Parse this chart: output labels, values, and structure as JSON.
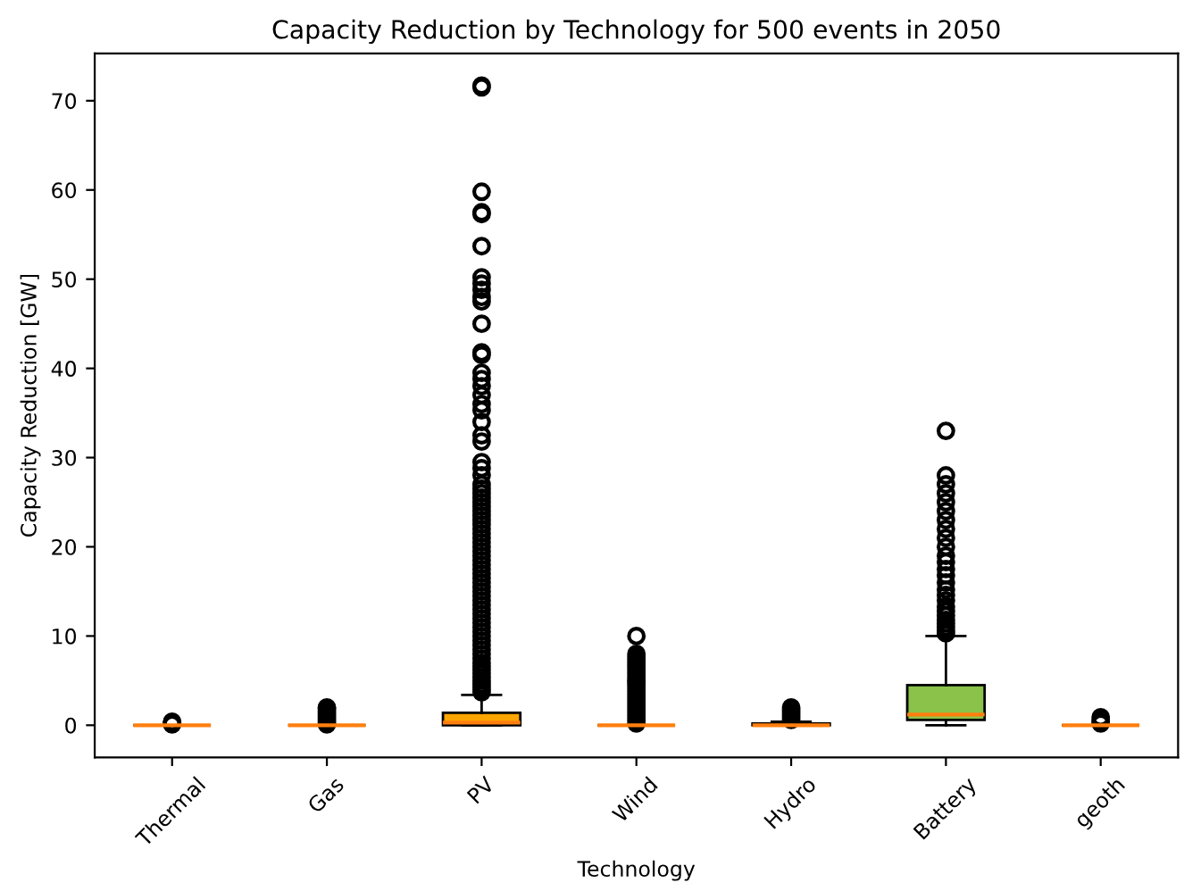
{
  "chart_data": {
    "type": "box",
    "title": "Capacity Reduction by Technology for 500 events in 2050",
    "xlabel": "Technology",
    "ylabel": "Capacity Reduction [GW]",
    "categories": [
      "Thermal",
      "Gas",
      "PV",
      "Wind",
      "Hydro",
      "Battery",
      "geoth"
    ],
    "colors": [
      null,
      null,
      "#ffa500",
      null,
      "#ffa500",
      "#8bc34a",
      null
    ],
    "boxes": [
      {
        "low": 0,
        "q1": 0,
        "median": 0,
        "q3": 0,
        "high": 0,
        "outliers": [
          0.1,
          0.2,
          0.3,
          0.4
        ]
      },
      {
        "low": 0,
        "q1": 0,
        "median": 0,
        "q3": 0,
        "high": 0,
        "outliers": [
          0.1,
          0.3,
          0.5,
          0.7,
          0.9,
          1.1,
          1.3,
          1.5,
          1.7,
          1.9,
          2.0
        ]
      },
      {
        "low": 0,
        "q1": 0,
        "median": 0.3,
        "q3": 1.4,
        "high": 3.4,
        "outliers": [
          3.7,
          4.0,
          4.3,
          4.6,
          5.0,
          5.4,
          5.8,
          6.2,
          6.6,
          7.0,
          7.5,
          8.0,
          8.5,
          9.0,
          9.5,
          10.0,
          10.5,
          11.0,
          11.5,
          12.0,
          12.5,
          13.0,
          13.5,
          14.0,
          14.5,
          15.0,
          15.5,
          16.0,
          16.5,
          17.0,
          17.5,
          18.0,
          18.5,
          19.0,
          19.5,
          20.0,
          20.5,
          21.0,
          21.5,
          22.0,
          22.5,
          23.0,
          23.5,
          24.0,
          24.5,
          25.0,
          25.5,
          26.0,
          26.5,
          27.0,
          28.0,
          28.8,
          29.5,
          31.8,
          32.5,
          34.0,
          35.3,
          36.0,
          37.0,
          38.0,
          38.8,
          39.5,
          41.5,
          41.8,
          45.0,
          47.5,
          48.0,
          48.8,
          49.5,
          50.2,
          53.7,
          57.3,
          57.5,
          59.8,
          71.5,
          71.7
        ]
      },
      {
        "low": 0,
        "q1": 0,
        "median": 0,
        "q3": 0,
        "high": 0,
        "outliers": [
          0.2,
          0.5,
          0.8,
          1.1,
          1.4,
          1.7,
          2.0,
          2.3,
          2.6,
          2.9,
          3.2,
          3.5,
          3.8,
          4.1,
          4.4,
          4.7,
          5.0,
          5.3,
          5.6,
          5.9,
          6.2,
          6.5,
          6.8,
          7.1,
          7.4,
          7.7,
          8.0,
          10.0
        ]
      },
      {
        "low": 0,
        "q1": 0,
        "median": 0,
        "q3": 0.2,
        "high": 0.4,
        "outliers": [
          0.6,
          0.8,
          1.0,
          1.2,
          1.4,
          1.6,
          1.8,
          2.0
        ]
      },
      {
        "low": 0,
        "q1": 0.6,
        "median": 1.2,
        "q3": 4.5,
        "high": 10.0,
        "outliers": [
          10.3,
          10.6,
          11.0,
          11.4,
          11.8,
          12.3,
          12.8,
          13.3,
          14.0,
          14.6,
          15.2,
          16.0,
          16.8,
          17.5,
          18.3,
          19.0,
          20.0,
          21.0,
          22.0,
          23.0,
          24.0,
          25.0,
          26.0,
          27.0,
          28.0,
          33.0
        ]
      },
      {
        "low": 0,
        "q1": 0,
        "median": 0,
        "q3": 0,
        "high": 0,
        "outliers": [
          0.2,
          0.4,
          0.6,
          0.9
        ]
      }
    ],
    "ylim": [
      -3.6,
      75.3
    ],
    "yticks": [
      0,
      10,
      20,
      30,
      40,
      50,
      60,
      70
    ],
    "grid": false
  }
}
